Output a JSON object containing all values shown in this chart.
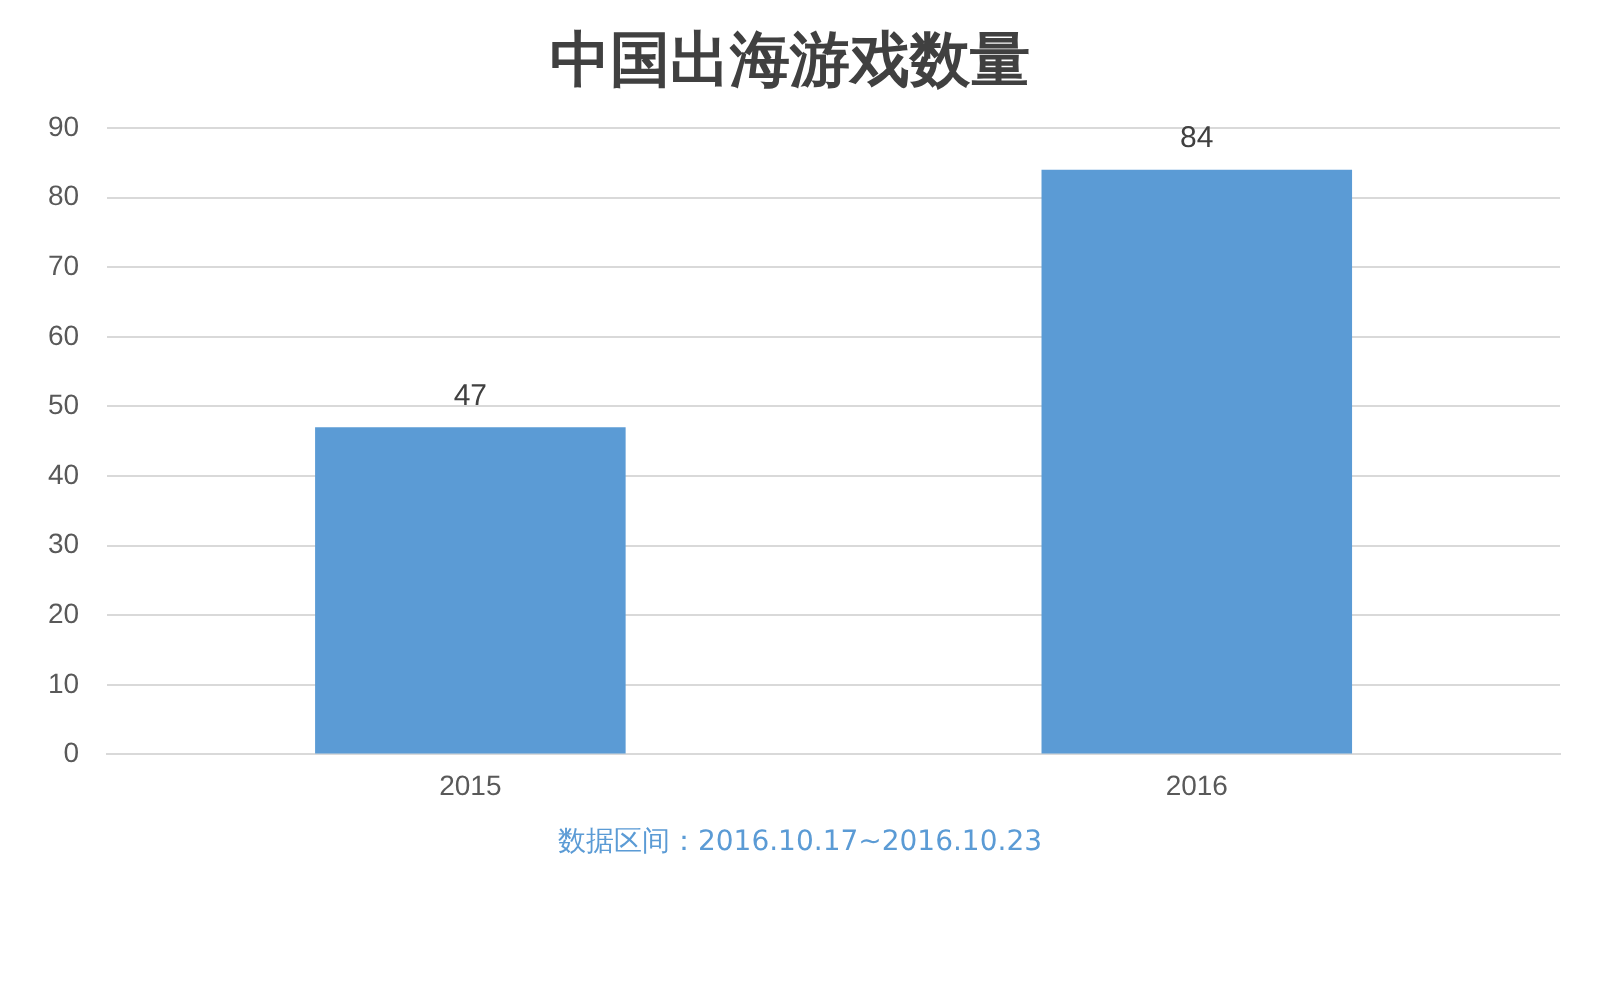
{
  "chart_data": {
    "type": "bar",
    "title": "中国出海游戏数量",
    "categories": [
      "2015",
      "2016"
    ],
    "values": [
      47,
      84
    ],
    "color": "#5b9bd5",
    "ylim": [
      0,
      90
    ],
    "yticks": [
      0,
      10,
      20,
      30,
      40,
      50,
      60,
      70,
      80,
      90
    ],
    "grid": "y",
    "data_labels": true,
    "legend": false,
    "annotations": [
      "数据区间：2016.10.17~2016.10.23"
    ]
  }
}
